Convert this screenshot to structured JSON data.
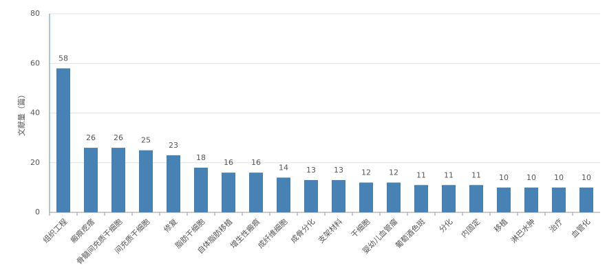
{
  "chart_data": {
    "type": "bar",
    "y_label": "文献量（篇）",
    "categories": [
      "组织工程",
      "瘢痕疙瘩",
      "骨髓间充质干细胞",
      "间充质干细胞",
      "修复",
      "脂肪干细胞",
      "自体脂肪移植",
      "增生性瘢痕",
      "成纤维细胞",
      "成骨分化",
      "支架材料",
      "干细胞",
      "婴幼儿血管瘤",
      "葡萄酒色斑",
      "分化",
      "内固定",
      "移植",
      "淋巴水肿",
      "治疗",
      "血管化"
    ],
    "values": [
      58,
      26,
      26,
      25,
      23,
      18,
      16,
      16,
      14,
      13,
      13,
      12,
      12,
      11,
      11,
      11,
      10,
      10,
      10,
      10
    ],
    "color": "#4682b4",
    "ylim": [
      0,
      80
    ],
    "yticks": [
      0,
      20,
      40,
      60,
      80
    ],
    "grid": true
  }
}
